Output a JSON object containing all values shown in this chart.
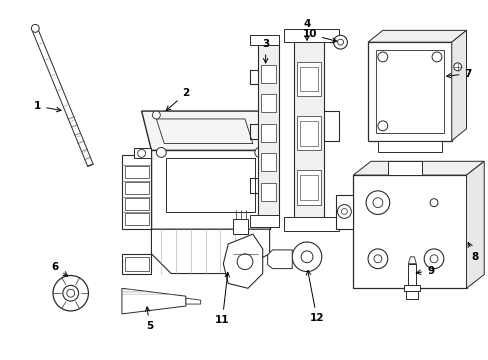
{
  "background_color": "#ffffff",
  "line_color": "#2a2a2a",
  "fig_width": 4.89,
  "fig_height": 3.6,
  "dpi": 100
}
